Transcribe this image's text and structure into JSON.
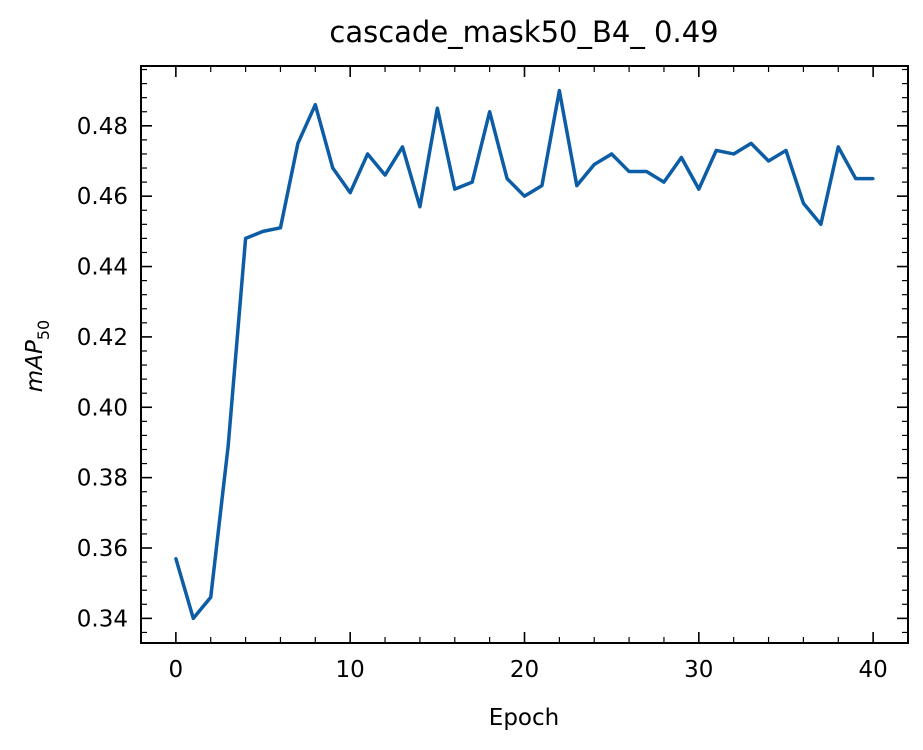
{
  "chart_data": {
    "type": "line",
    "title": "cascade_mask50_B4_ 0.49",
    "xlabel": "Epoch",
    "ylabel": "mAP",
    "ylabel_subscript": "50",
    "xlim": [
      -2,
      42
    ],
    "ylim": [
      0.333,
      0.497
    ],
    "xticks": [
      0,
      10,
      20,
      30,
      40
    ],
    "xtick_labels": [
      "0",
      "10",
      "20",
      "30",
      "40"
    ],
    "yticks": [
      0.34,
      0.36,
      0.38,
      0.4,
      0.42,
      0.44,
      0.46,
      0.48
    ],
    "ytick_labels": [
      "0.34",
      "0.36",
      "0.38",
      "0.40",
      "0.42",
      "0.44",
      "0.46",
      "0.48"
    ],
    "grid": false,
    "series": [
      {
        "color": "#0c5da5",
        "x": [
          0,
          1,
          2,
          3,
          4,
          5,
          6,
          7,
          8,
          9,
          10,
          11,
          12,
          13,
          14,
          15,
          16,
          17,
          18,
          19,
          20,
          21,
          22,
          23,
          24,
          25,
          26,
          27,
          28,
          29,
          30,
          31,
          32,
          33,
          34,
          35,
          36,
          37,
          38,
          39,
          40
        ],
        "values": [
          0.357,
          0.34,
          0.346,
          0.389,
          0.448,
          0.45,
          0.451,
          0.475,
          0.486,
          0.468,
          0.461,
          0.472,
          0.466,
          0.474,
          0.457,
          0.485,
          0.462,
          0.464,
          0.484,
          0.465,
          0.46,
          0.463,
          0.49,
          0.463,
          0.469,
          0.472,
          0.467,
          0.467,
          0.464,
          0.471,
          0.462,
          0.473,
          0.472,
          0.475,
          0.47,
          0.473,
          0.458,
          0.452,
          0.474,
          0.465,
          0.465
        ]
      }
    ]
  }
}
